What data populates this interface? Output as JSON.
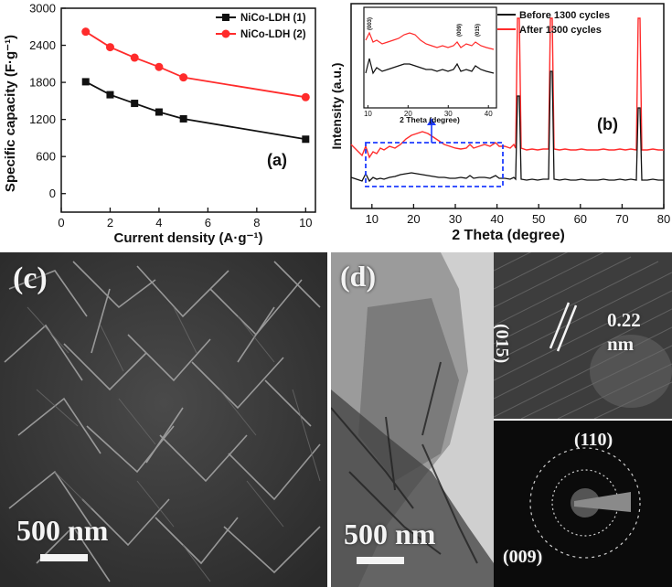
{
  "chart_data": [
    {
      "panel": "(a)",
      "type": "line",
      "xlabel": "Current density (A·g⁻¹)",
      "ylabel": "Specific capacity (F·g⁻¹)",
      "xlim": [
        0,
        10.4
      ],
      "ylim": [
        -300,
        3000
      ],
      "xticks": [
        0,
        2,
        4,
        6,
        8,
        10
      ],
      "yticks": [
        0,
        600,
        1200,
        1800,
        2400,
        3000
      ],
      "legend": "top-right",
      "series": [
        {
          "name": "NiCo-LDH (1)",
          "color": "#111111",
          "marker": "square",
          "x": [
            1,
            2,
            3,
            4,
            5,
            10
          ],
          "values": [
            1810,
            1600,
            1460,
            1320,
            1210,
            880
          ]
        },
        {
          "name": "NiCo-LDH (2)",
          "color": "#ff2b2b",
          "marker": "circle",
          "x": [
            1,
            2,
            3,
            4,
            5,
            10
          ],
          "values": [
            2620,
            2370,
            2200,
            2050,
            1880,
            1560
          ]
        }
      ]
    },
    {
      "panel": "(b)",
      "type": "line",
      "xlabel": "2 Theta (degree)",
      "ylabel": "Intensity (a.u.)",
      "xlim": [
        5,
        80
      ],
      "xticks": [
        10,
        20,
        30,
        40,
        50,
        60,
        70,
        80
      ],
      "legend": "top-right",
      "series": [
        {
          "name": "Before 1300 cycles",
          "color": "#111111"
        },
        {
          "name": "After 1300 cycles",
          "color": "#ff2b2b"
        }
      ],
      "inset": {
        "xlabel": "2 Theta (degree)",
        "xticks": [
          10,
          20,
          30,
          40
        ],
        "peak_labels": [
          "(003)",
          "(009)",
          "(015)"
        ]
      }
    }
  ],
  "panels": {
    "a_label": "(a)",
    "b_label": "(b)",
    "c_label": "(c)",
    "d_label": "(d)",
    "c_scale": "500 nm",
    "d_scale": "500 nm",
    "hrtem_plane": "(015)",
    "hrtem_spacing": "0.22",
    "hrtem_unit": "nm",
    "saed_110": "(110)",
    "saed_009": "(009)"
  },
  "colors": {
    "series_1": "#111111",
    "series_2": "#ff2b2b",
    "inset_box": "#1e3cff"
  }
}
